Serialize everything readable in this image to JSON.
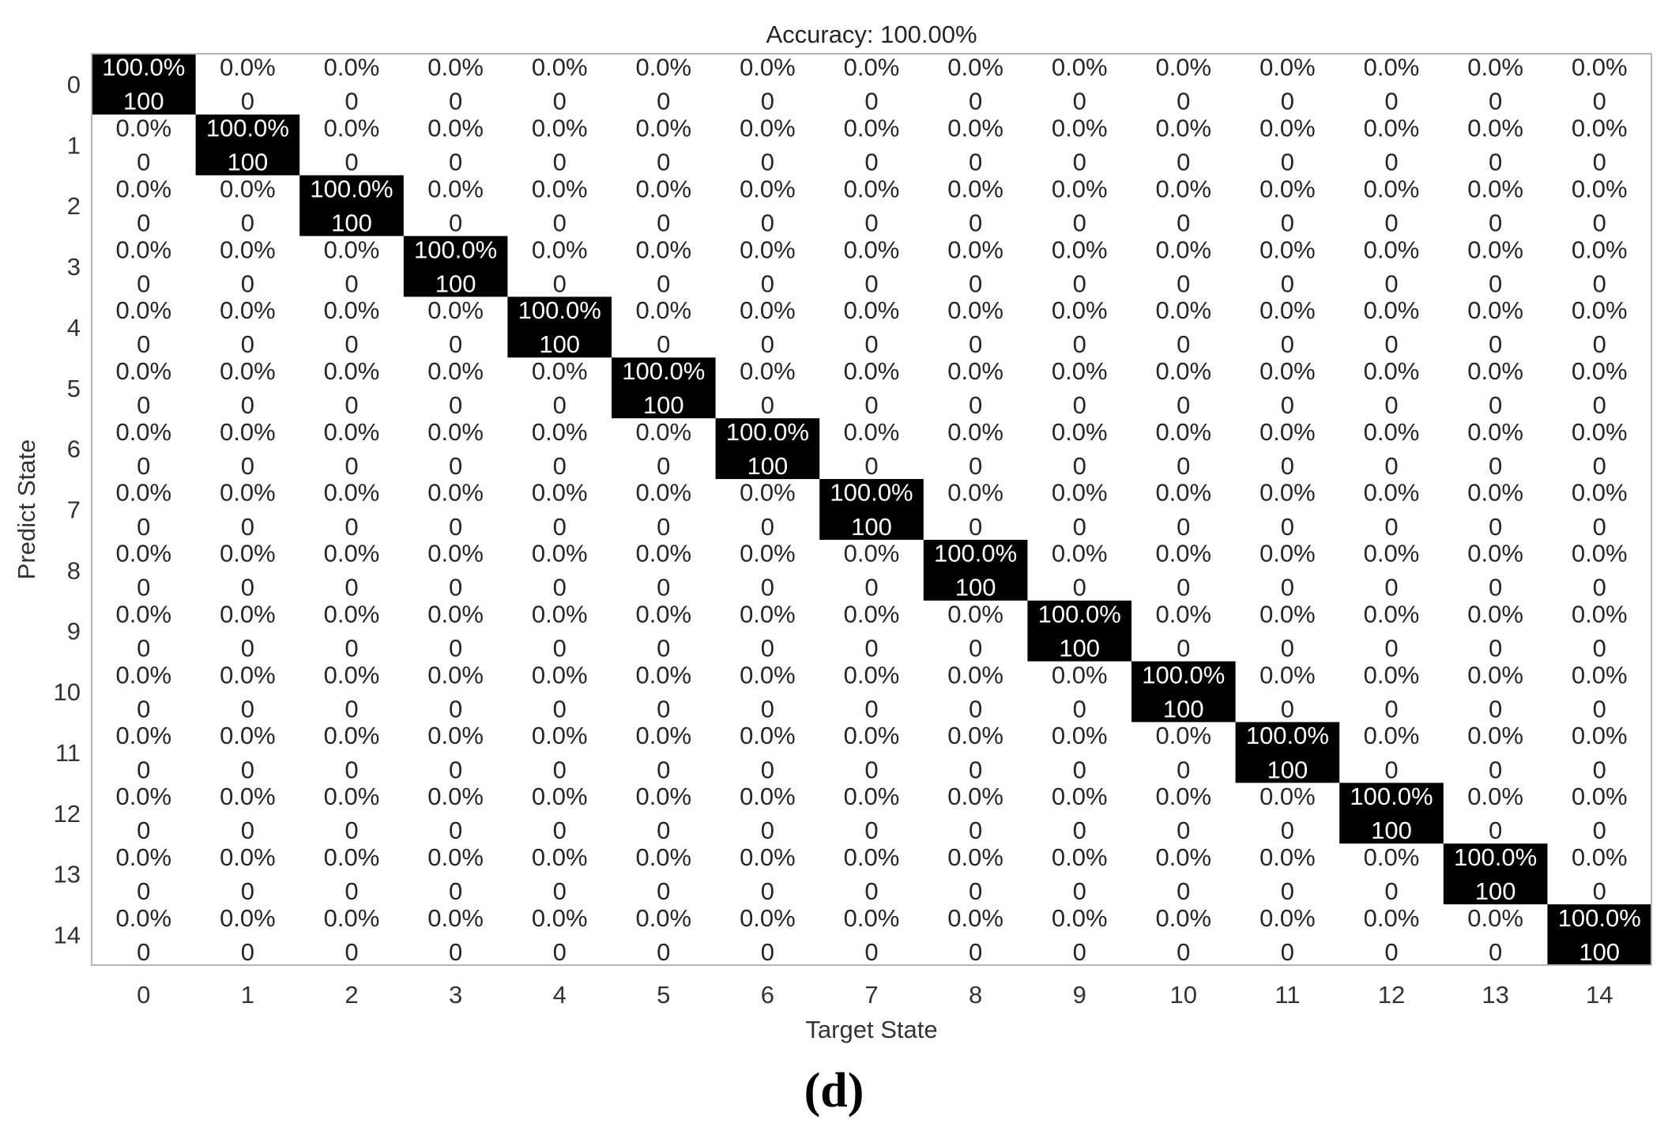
{
  "chart_data": {
    "type": "heatmap",
    "title": "Accuracy: 100.00%",
    "xlabel": "Target State",
    "ylabel": "Predict State",
    "x_ticks": [
      "0",
      "1",
      "2",
      "3",
      "4",
      "5",
      "6",
      "7",
      "8",
      "9",
      "10",
      "11",
      "12",
      "13",
      "14"
    ],
    "y_ticks": [
      "0",
      "1",
      "2",
      "3",
      "4",
      "5",
      "6",
      "7",
      "8",
      "9",
      "10",
      "11",
      "12",
      "13",
      "14"
    ],
    "percent_matrix": [
      [
        "100.0%",
        "0.0%",
        "0.0%",
        "0.0%",
        "0.0%",
        "0.0%",
        "0.0%",
        "0.0%",
        "0.0%",
        "0.0%",
        "0.0%",
        "0.0%",
        "0.0%",
        "0.0%",
        "0.0%"
      ],
      [
        "0.0%",
        "100.0%",
        "0.0%",
        "0.0%",
        "0.0%",
        "0.0%",
        "0.0%",
        "0.0%",
        "0.0%",
        "0.0%",
        "0.0%",
        "0.0%",
        "0.0%",
        "0.0%",
        "0.0%"
      ],
      [
        "0.0%",
        "0.0%",
        "100.0%",
        "0.0%",
        "0.0%",
        "0.0%",
        "0.0%",
        "0.0%",
        "0.0%",
        "0.0%",
        "0.0%",
        "0.0%",
        "0.0%",
        "0.0%",
        "0.0%"
      ],
      [
        "0.0%",
        "0.0%",
        "0.0%",
        "100.0%",
        "0.0%",
        "0.0%",
        "0.0%",
        "0.0%",
        "0.0%",
        "0.0%",
        "0.0%",
        "0.0%",
        "0.0%",
        "0.0%",
        "0.0%"
      ],
      [
        "0.0%",
        "0.0%",
        "0.0%",
        "0.0%",
        "100.0%",
        "0.0%",
        "0.0%",
        "0.0%",
        "0.0%",
        "0.0%",
        "0.0%",
        "0.0%",
        "0.0%",
        "0.0%",
        "0.0%"
      ],
      [
        "0.0%",
        "0.0%",
        "0.0%",
        "0.0%",
        "0.0%",
        "100.0%",
        "0.0%",
        "0.0%",
        "0.0%",
        "0.0%",
        "0.0%",
        "0.0%",
        "0.0%",
        "0.0%",
        "0.0%"
      ],
      [
        "0.0%",
        "0.0%",
        "0.0%",
        "0.0%",
        "0.0%",
        "0.0%",
        "100.0%",
        "0.0%",
        "0.0%",
        "0.0%",
        "0.0%",
        "0.0%",
        "0.0%",
        "0.0%",
        "0.0%"
      ],
      [
        "0.0%",
        "0.0%",
        "0.0%",
        "0.0%",
        "0.0%",
        "0.0%",
        "0.0%",
        "100.0%",
        "0.0%",
        "0.0%",
        "0.0%",
        "0.0%",
        "0.0%",
        "0.0%",
        "0.0%"
      ],
      [
        "0.0%",
        "0.0%",
        "0.0%",
        "0.0%",
        "0.0%",
        "0.0%",
        "0.0%",
        "0.0%",
        "100.0%",
        "0.0%",
        "0.0%",
        "0.0%",
        "0.0%",
        "0.0%",
        "0.0%"
      ],
      [
        "0.0%",
        "0.0%",
        "0.0%",
        "0.0%",
        "0.0%",
        "0.0%",
        "0.0%",
        "0.0%",
        "0.0%",
        "100.0%",
        "0.0%",
        "0.0%",
        "0.0%",
        "0.0%",
        "0.0%"
      ],
      [
        "0.0%",
        "0.0%",
        "0.0%",
        "0.0%",
        "0.0%",
        "0.0%",
        "0.0%",
        "0.0%",
        "0.0%",
        "0.0%",
        "100.0%",
        "0.0%",
        "0.0%",
        "0.0%",
        "0.0%"
      ],
      [
        "0.0%",
        "0.0%",
        "0.0%",
        "0.0%",
        "0.0%",
        "0.0%",
        "0.0%",
        "0.0%",
        "0.0%",
        "0.0%",
        "0.0%",
        "100.0%",
        "0.0%",
        "0.0%",
        "0.0%"
      ],
      [
        "0.0%",
        "0.0%",
        "0.0%",
        "0.0%",
        "0.0%",
        "0.0%",
        "0.0%",
        "0.0%",
        "0.0%",
        "0.0%",
        "0.0%",
        "0.0%",
        "100.0%",
        "0.0%",
        "0.0%"
      ],
      [
        "0.0%",
        "0.0%",
        "0.0%",
        "0.0%",
        "0.0%",
        "0.0%",
        "0.0%",
        "0.0%",
        "0.0%",
        "0.0%",
        "0.0%",
        "0.0%",
        "0.0%",
        "100.0%",
        "0.0%"
      ],
      [
        "0.0%",
        "0.0%",
        "0.0%",
        "0.0%",
        "0.0%",
        "0.0%",
        "0.0%",
        "0.0%",
        "0.0%",
        "0.0%",
        "0.0%",
        "0.0%",
        "0.0%",
        "0.0%",
        "100.0%"
      ]
    ],
    "count_matrix": [
      [
        100,
        0,
        0,
        0,
        0,
        0,
        0,
        0,
        0,
        0,
        0,
        0,
        0,
        0,
        0
      ],
      [
        0,
        100,
        0,
        0,
        0,
        0,
        0,
        0,
        0,
        0,
        0,
        0,
        0,
        0,
        0
      ],
      [
        0,
        0,
        100,
        0,
        0,
        0,
        0,
        0,
        0,
        0,
        0,
        0,
        0,
        0,
        0
      ],
      [
        0,
        0,
        0,
        100,
        0,
        0,
        0,
        0,
        0,
        0,
        0,
        0,
        0,
        0,
        0
      ],
      [
        0,
        0,
        0,
        0,
        100,
        0,
        0,
        0,
        0,
        0,
        0,
        0,
        0,
        0,
        0
      ],
      [
        0,
        0,
        0,
        0,
        0,
        100,
        0,
        0,
        0,
        0,
        0,
        0,
        0,
        0,
        0
      ],
      [
        0,
        0,
        0,
        0,
        0,
        0,
        100,
        0,
        0,
        0,
        0,
        0,
        0,
        0,
        0
      ],
      [
        0,
        0,
        0,
        0,
        0,
        0,
        0,
        100,
        0,
        0,
        0,
        0,
        0,
        0,
        0
      ],
      [
        0,
        0,
        0,
        0,
        0,
        0,
        0,
        0,
        100,
        0,
        0,
        0,
        0,
        0,
        0
      ],
      [
        0,
        0,
        0,
        0,
        0,
        0,
        0,
        0,
        0,
        100,
        0,
        0,
        0,
        0,
        0
      ],
      [
        0,
        0,
        0,
        0,
        0,
        0,
        0,
        0,
        0,
        0,
        100,
        0,
        0,
        0,
        0
      ],
      [
        0,
        0,
        0,
        0,
        0,
        0,
        0,
        0,
        0,
        0,
        0,
        100,
        0,
        0,
        0
      ],
      [
        0,
        0,
        0,
        0,
        0,
        0,
        0,
        0,
        0,
        0,
        0,
        0,
        100,
        0,
        0
      ],
      [
        0,
        0,
        0,
        0,
        0,
        0,
        0,
        0,
        0,
        0,
        0,
        0,
        0,
        100,
        0
      ],
      [
        0,
        0,
        0,
        0,
        0,
        0,
        0,
        0,
        0,
        0,
        0,
        0,
        0,
        0,
        100
      ]
    ],
    "colormap": {
      "low": "#ffffff",
      "high": "#000000"
    },
    "grid": false
  },
  "panel_label": "(d)"
}
